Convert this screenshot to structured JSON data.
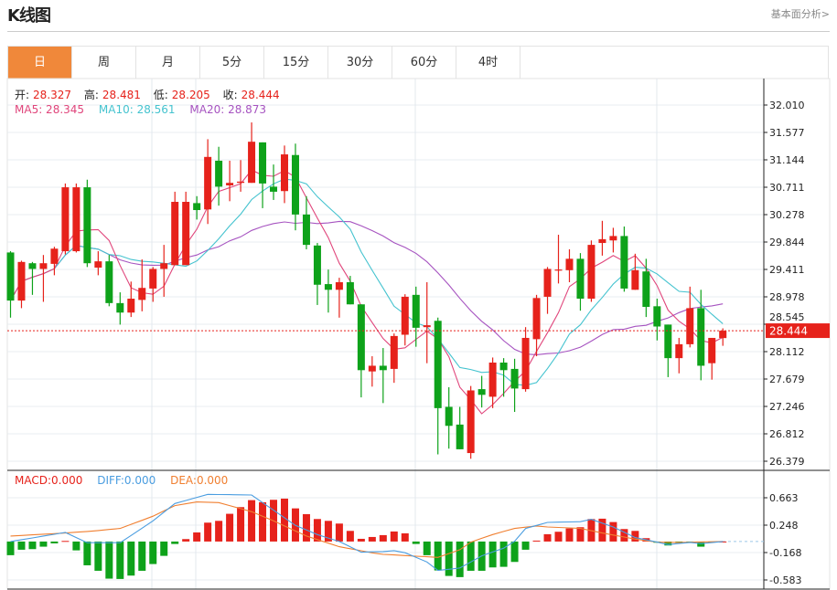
{
  "header": {
    "title": "K线图",
    "more_link": "基本面分析>"
  },
  "tabs": [
    {
      "label": "日",
      "active": true
    },
    {
      "label": "周"
    },
    {
      "label": "月"
    },
    {
      "label": "5分"
    },
    {
      "label": "15分"
    },
    {
      "label": "30分"
    },
    {
      "label": "60分"
    },
    {
      "label": "4时"
    }
  ],
  "ohlc_legend": {
    "open_label": "开:",
    "open": "28.327",
    "high_label": "高:",
    "high": "28.481",
    "low_label": "低:",
    "low": "28.205",
    "close_label": "收:",
    "close": "28.444"
  },
  "ma_legend": {
    "ma5": "MA5: 28.345",
    "ma10": "MA10: 28.561",
    "ma20": "MA20: 28.873"
  },
  "macd_legend": {
    "macd": "MACD:0.000",
    "diff": "DIFF:0.000",
    "dea": "DEA:0.000"
  },
  "colors": {
    "up": "#e6221b",
    "down": "#0ea21a",
    "ma5": "#e0457b",
    "ma10": "#44c3cf",
    "ma20": "#a653c0",
    "diff": "#4a9de0",
    "dea": "#f07f30",
    "active_tab": "#f0883a"
  },
  "last_price_label": "28.444",
  "chart_data": [
    {
      "type": "candlestick",
      "title": "",
      "ylim": [
        26.379,
        32.01
      ],
      "y_ticks": [
        "32.010",
        "31.577",
        "31.144",
        "30.711",
        "30.278",
        "29.844",
        "29.411",
        "28.978",
        "28.545",
        "28.112",
        "27.679",
        "27.246",
        "26.812",
        "26.379"
      ],
      "last_price": 28.444,
      "grid": true,
      "ohlc": [
        [
          29.68,
          29.7,
          28.65,
          28.92
        ],
        [
          28.92,
          29.55,
          28.8,
          29.53
        ],
        [
          29.51,
          29.53,
          29.01,
          29.42
        ],
        [
          29.42,
          29.64,
          28.9,
          29.51
        ],
        [
          29.5,
          29.77,
          29.32,
          29.74
        ],
        [
          29.7,
          30.77,
          29.65,
          30.71
        ],
        [
          29.7,
          30.77,
          29.68,
          30.71
        ],
        [
          30.71,
          30.83,
          29.45,
          29.51
        ],
        [
          29.44,
          29.7,
          29.32,
          29.54
        ],
        [
          29.54,
          29.64,
          28.83,
          28.88
        ],
        [
          28.88,
          29.05,
          28.54,
          28.73
        ],
        [
          28.73,
          29.22,
          28.66,
          28.95
        ],
        [
          28.93,
          29.57,
          28.75,
          29.12
        ],
        [
          29.11,
          29.45,
          28.9,
          29.42
        ],
        [
          29.42,
          29.8,
          28.98,
          29.51
        ],
        [
          29.48,
          30.64,
          29.48,
          30.48
        ],
        [
          29.48,
          30.64,
          29.48,
          30.48
        ],
        [
          30.46,
          30.57,
          30.2,
          30.35
        ],
        [
          30.36,
          31.47,
          30.13,
          31.19
        ],
        [
          31.13,
          31.35,
          30.42,
          30.72
        ],
        [
          30.74,
          31.13,
          30.49,
          30.78
        ],
        [
          30.78,
          31.14,
          30.64,
          30.8
        ],
        [
          30.78,
          31.735,
          30.78,
          31.43
        ],
        [
          31.42,
          31.42,
          30.38,
          30.77
        ],
        [
          30.72,
          31.07,
          30.51,
          30.64
        ],
        [
          30.65,
          31.37,
          30.46,
          31.23
        ],
        [
          31.22,
          31.4,
          30.03,
          30.28
        ],
        [
          30.28,
          30.57,
          29.73,
          29.8
        ],
        [
          29.79,
          29.83,
          28.85,
          29.17
        ],
        [
          29.18,
          29.41,
          28.73,
          29.09
        ],
        [
          29.09,
          29.28,
          28.65,
          29.21
        ],
        [
          29.21,
          29.31,
          28.86,
          28.86
        ],
        [
          28.86,
          28.86,
          27.39,
          27.82
        ],
        [
          27.8,
          28.04,
          27.56,
          27.89
        ],
        [
          27.89,
          28.17,
          27.3,
          27.82
        ],
        [
          27.84,
          28.4,
          27.62,
          28.36
        ],
        [
          28.38,
          29.02,
          28.21,
          28.98
        ],
        [
          29.01,
          29.14,
          28.19,
          28.49
        ],
        [
          28.5,
          29.21,
          27.93,
          28.53
        ],
        [
          28.6,
          28.65,
          26.49,
          27.22
        ],
        [
          27.24,
          27.55,
          26.58,
          26.94
        ],
        [
          26.96,
          27.24,
          26.57,
          26.57
        ],
        [
          26.51,
          27.57,
          26.42,
          27.5
        ],
        [
          27.52,
          27.73,
          27.23,
          27.43
        ],
        [
          27.4,
          28.02,
          27.22,
          27.94
        ],
        [
          27.94,
          28.01,
          27.4,
          27.82
        ],
        [
          27.84,
          28.0,
          27.16,
          27.53
        ],
        [
          27.52,
          28.5,
          27.48,
          28.33
        ],
        [
          28.31,
          29.01,
          28.04,
          28.96
        ],
        [
          28.98,
          29.45,
          28.71,
          29.42
        ],
        [
          29.4,
          29.96,
          29.19,
          29.41
        ],
        [
          29.4,
          29.73,
          29.21,
          29.58
        ],
        [
          29.58,
          29.67,
          28.76,
          28.95
        ],
        [
          28.95,
          29.87,
          28.9,
          29.8
        ],
        [
          29.83,
          30.18,
          29.63,
          29.89
        ],
        [
          29.87,
          30.07,
          29.68,
          29.94
        ],
        [
          29.94,
          30.09,
          29.06,
          29.11
        ],
        [
          29.09,
          29.66,
          29.09,
          29.4
        ],
        [
          29.38,
          29.58,
          28.66,
          28.82
        ],
        [
          28.83,
          28.95,
          28.29,
          28.51
        ],
        [
          28.54,
          28.54,
          27.71,
          28.01
        ],
        [
          28.01,
          28.33,
          27.77,
          28.23
        ],
        [
          28.23,
          29.14,
          28.18,
          28.8
        ],
        [
          28.8,
          29.09,
          27.66,
          27.89
        ],
        [
          27.93,
          28.33,
          27.67,
          28.33
        ],
        [
          28.327,
          28.481,
          28.205,
          28.444
        ]
      ],
      "series": [
        {
          "name": "MA5"
        },
        {
          "name": "MA10"
        },
        {
          "name": "MA20"
        }
      ]
    },
    {
      "type": "bar+line",
      "title": "",
      "ylim": [
        -0.583,
        0.663
      ],
      "y_ticks": [
        "0.663",
        "0.248",
        "-0.168",
        "-0.583"
      ],
      "macd": [
        -0.207,
        -0.124,
        -0.115,
        -0.078,
        -0.028,
        0.009,
        -0.134,
        -0.36,
        -0.443,
        -0.562,
        -0.567,
        -0.516,
        -0.443,
        -0.341,
        -0.217,
        -0.037,
        0.037,
        0.138,
        0.286,
        0.313,
        0.42,
        0.521,
        0.627,
        0.595,
        0.632,
        0.65,
        0.502,
        0.415,
        0.341,
        0.313,
        0.272,
        0.161,
        0.041,
        0.069,
        0.097,
        0.152,
        0.124,
        -0.037,
        -0.207,
        -0.438,
        -0.521,
        -0.539,
        -0.443,
        -0.443,
        -0.392,
        -0.383,
        -0.309,
        -0.124,
        0.014,
        0.111,
        0.148,
        0.198,
        0.217,
        0.341,
        0.346,
        0.295,
        0.189,
        0.161,
        0.051,
        -0.018,
        -0.06,
        -0.023,
        -0.014,
        -0.078,
        -0.014,
        0
      ],
      "diff": [
        0,
        0.028,
        0.055,
        0.083,
        0.11,
        0.138,
        0.06,
        -0.018,
        -0.018,
        -0.018,
        -0.018,
        0.092,
        0.203,
        0.313,
        0.445,
        0.576,
        0.622,
        0.668,
        0.714,
        0.712,
        0.71,
        0.707,
        0.705,
        0.59,
        0.475,
        0.36,
        0.244,
        0.175,
        0.106,
        0.053,
        0,
        -0.08,
        -0.161,
        -0.156,
        -0.152,
        -0.138,
        -0.17,
        -0.24,
        -0.309,
        -0.438,
        -0.42,
        -0.401,
        -0.31,
        -0.217,
        -0.159,
        -0.101,
        0.005,
        0.198,
        0.244,
        0.29,
        0.293,
        0.297,
        0.3,
        0.336,
        0.279,
        0.221,
        0.14,
        0.06,
        0.025,
        -0.009,
        -0.046,
        -0.03,
        -0.014,
        -0.032,
        -0.016,
        0
      ],
      "dea": [
        0.083,
        0.092,
        0.101,
        0.111,
        0.12,
        0.129,
        0.141,
        0.152,
        0.167,
        0.183,
        0.198,
        0.26,
        0.321,
        0.383,
        0.464,
        0.544,
        0.572,
        0.599,
        0.595,
        0.59,
        0.544,
        0.498,
        0.452,
        0.383,
        0.313,
        0.236,
        0.16,
        0.083,
        0.029,
        -0.025,
        -0.078,
        -0.109,
        -0.14,
        -0.171,
        -0.194,
        -0.203,
        -0.212,
        -0.222,
        -0.231,
        -0.24,
        -0.182,
        -0.124,
        -0.009,
        0.049,
        0.106,
        0.152,
        0.198,
        0.217,
        0.235,
        0.221,
        0.213,
        0.206,
        0.198,
        0.164,
        0.129,
        0.099,
        0.068,
        0.037,
        0.014,
        -0.009,
        -0.012,
        -0.014,
        -0.011,
        -0.007,
        -0.004,
        0
      ]
    }
  ]
}
